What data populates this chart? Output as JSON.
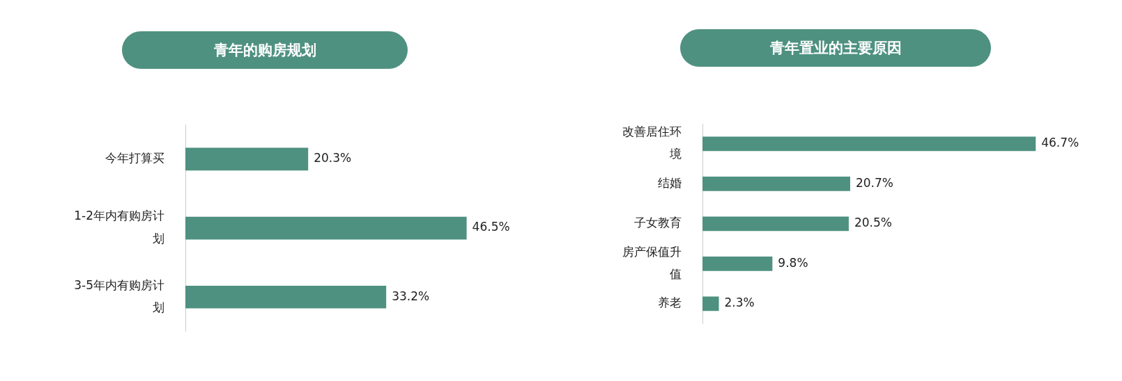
{
  "chart_data": [
    {
      "type": "bar",
      "orientation": "horizontal",
      "title": "青年的购房规划",
      "categories": [
        "今年打算买",
        "1-2年内有购房计划",
        "3-5年内有购房计划"
      ],
      "values": [
        20.3,
        46.5,
        33.2
      ],
      "value_labels": [
        "20.3%",
        "46.5%",
        "33.2%"
      ],
      "color": "#4f9180",
      "legend": false,
      "tick_labels": "y"
    },
    {
      "type": "bar",
      "orientation": "horizontal",
      "title": "青年置业的主要原因",
      "categories": [
        "改善居住环境",
        "结婚",
        "子女教育",
        "房产保值升值",
        "养老"
      ],
      "values": [
        46.7,
        20.7,
        20.5,
        9.8,
        2.3
      ],
      "value_labels": [
        "46.7%",
        "20.7%",
        "20.5%",
        "9.8%",
        "2.3%"
      ],
      "color": "#4f9180",
      "legend": false,
      "tick_labels": "y"
    }
  ]
}
